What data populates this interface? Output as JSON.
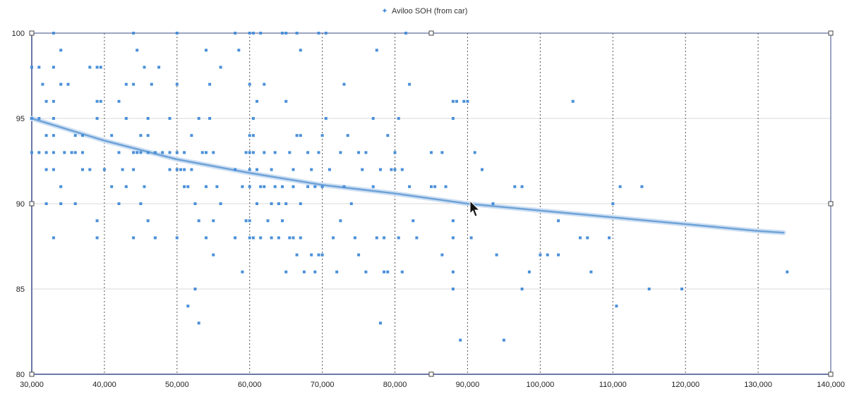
{
  "chart_data": {
    "type": "scatter",
    "title": "",
    "xlabel": "",
    "ylabel": "",
    "xlim": [
      30000,
      140000
    ],
    "ylim": [
      80,
      100
    ],
    "x_ticks": [
      30000,
      40000,
      50000,
      60000,
      70000,
      80000,
      90000,
      100000,
      110000,
      120000,
      130000,
      140000
    ],
    "x_tick_labels": [
      "30,000",
      "40,000",
      "50,000",
      "60,000",
      "70,000",
      "80,000",
      "90,000",
      "100,000",
      "110,000",
      "120,000",
      "130,000",
      "140,000"
    ],
    "y_ticks": [
      80,
      85,
      90,
      95,
      100
    ],
    "y_tick_labels": [
      "80",
      "85",
      "90",
      "95",
      "100"
    ],
    "grid": {
      "vertical": "dotted",
      "horizontal": "solid-light"
    },
    "legend": {
      "placement": "top-center",
      "entries": [
        "Aviloo SOH (from car)"
      ]
    },
    "colors": {
      "points": "#4a90d9",
      "trend": "#6fa3d8",
      "axis": "#3a4a8a"
    },
    "series": [
      {
        "name": "Aviloo SOH (from car)",
        "points": [
          [
            30000,
            98
          ],
          [
            30000,
            93
          ],
          [
            30000,
            95
          ],
          [
            31000,
            98
          ],
          [
            31000,
            95
          ],
          [
            31000,
            93
          ],
          [
            31500,
            97
          ],
          [
            32000,
            96
          ],
          [
            32000,
            94
          ],
          [
            32000,
            92
          ],
          [
            32000,
            90
          ],
          [
            32000,
            93
          ],
          [
            33000,
            100
          ],
          [
            33000,
            98
          ],
          [
            33000,
            96
          ],
          [
            33000,
            95
          ],
          [
            33000,
            94
          ],
          [
            33000,
            93
          ],
          [
            33000,
            92
          ],
          [
            33000,
            88
          ],
          [
            34000,
            99
          ],
          [
            34000,
            97
          ],
          [
            34000,
            91
          ],
          [
            34000,
            90
          ],
          [
            34500,
            93
          ],
          [
            35000,
            97
          ],
          [
            35500,
            93
          ],
          [
            36000,
            94
          ],
          [
            36000,
            93
          ],
          [
            36000,
            90
          ],
          [
            37000,
            94
          ],
          [
            37000,
            93
          ],
          [
            37000,
            92
          ],
          [
            38000,
            98
          ],
          [
            38000,
            92
          ],
          [
            39000,
            98
          ],
          [
            39000,
            96
          ],
          [
            39000,
            95
          ],
          [
            39000,
            89
          ],
          [
            39000,
            88
          ],
          [
            39500,
            98
          ],
          [
            39500,
            96
          ],
          [
            40000,
            92
          ],
          [
            41000,
            94
          ],
          [
            41000,
            91
          ],
          [
            42000,
            96
          ],
          [
            42000,
            93
          ],
          [
            42000,
            90
          ],
          [
            42500,
            92
          ],
          [
            43000,
            97
          ],
          [
            43000,
            95
          ],
          [
            43000,
            91
          ],
          [
            44000,
            100
          ],
          [
            44000,
            97
          ],
          [
            44000,
            93
          ],
          [
            44000,
            92
          ],
          [
            44000,
            88
          ],
          [
            44500,
            99
          ],
          [
            44500,
            93
          ],
          [
            45000,
            94
          ],
          [
            45000,
            93
          ],
          [
            45000,
            90
          ],
          [
            45500,
            98
          ],
          [
            45500,
            91
          ],
          [
            46000,
            95
          ],
          [
            46000,
            94
          ],
          [
            46000,
            93
          ],
          [
            46000,
            89
          ],
          [
            46500,
            97
          ],
          [
            47000,
            93
          ],
          [
            47000,
            88
          ],
          [
            47500,
            98
          ],
          [
            48000,
            93
          ],
          [
            49000,
            95
          ],
          [
            49000,
            93
          ],
          [
            49000,
            92
          ],
          [
            50000,
            100
          ],
          [
            50000,
            97
          ],
          [
            50000,
            93
          ],
          [
            50000,
            92
          ],
          [
            50000,
            88
          ],
          [
            50500,
            92
          ],
          [
            51000,
            93
          ],
          [
            51000,
            92
          ],
          [
            51000,
            91
          ],
          [
            51500,
            91
          ],
          [
            51500,
            84
          ],
          [
            52000,
            94
          ],
          [
            52000,
            92
          ],
          [
            52500,
            90
          ],
          [
            52500,
            85
          ],
          [
            53000,
            95
          ],
          [
            53000,
            89
          ],
          [
            53000,
            83
          ],
          [
            53500,
            93
          ],
          [
            54000,
            99
          ],
          [
            54000,
            93
          ],
          [
            54000,
            91
          ],
          [
            54000,
            88
          ],
          [
            54500,
            97
          ],
          [
            54500,
            95
          ],
          [
            55000,
            93
          ],
          [
            55000,
            89
          ],
          [
            55000,
            87
          ],
          [
            55500,
            91
          ],
          [
            56000,
            98
          ],
          [
            56000,
            90
          ],
          [
            58000,
            100
          ],
          [
            58000,
            92
          ],
          [
            58000,
            88
          ],
          [
            58500,
            99
          ],
          [
            59000,
            91
          ],
          [
            59000,
            86
          ],
          [
            59500,
            93
          ],
          [
            59500,
            89
          ],
          [
            60000,
            100
          ],
          [
            60000,
            97
          ],
          [
            60000,
            94
          ],
          [
            60000,
            93
          ],
          [
            60000,
            92
          ],
          [
            60000,
            91
          ],
          [
            60000,
            89
          ],
          [
            60000,
            88
          ],
          [
            60500,
            100
          ],
          [
            60500,
            95
          ],
          [
            60500,
            94
          ],
          [
            60500,
            93
          ],
          [
            60500,
            88
          ],
          [
            61000,
            96
          ],
          [
            61000,
            92
          ],
          [
            61000,
            90
          ],
          [
            61500,
            100
          ],
          [
            61500,
            91
          ],
          [
            61500,
            88
          ],
          [
            62000,
            97
          ],
          [
            62000,
            93
          ],
          [
            62000,
            91
          ],
          [
            62500,
            89
          ],
          [
            63000,
            92
          ],
          [
            63000,
            90
          ],
          [
            63000,
            88
          ],
          [
            63500,
            93
          ],
          [
            63500,
            91
          ],
          [
            64000,
            90
          ],
          [
            64000,
            88
          ],
          [
            64500,
            100
          ],
          [
            64500,
            91
          ],
          [
            64500,
            89
          ],
          [
            65000,
            100
          ],
          [
            65000,
            96
          ],
          [
            65000,
            90
          ],
          [
            65000,
            86
          ],
          [
            65500,
            93
          ],
          [
            65500,
            88
          ],
          [
            66000,
            92
          ],
          [
            66000,
            91
          ],
          [
            66000,
            88
          ],
          [
            66500,
            100
          ],
          [
            66500,
            94
          ],
          [
            66500,
            87
          ],
          [
            67000,
            99
          ],
          [
            67000,
            94
          ],
          [
            67000,
            90
          ],
          [
            67000,
            88
          ],
          [
            67500,
            86
          ],
          [
            68000,
            93
          ],
          [
            68000,
            91
          ],
          [
            68500,
            92
          ],
          [
            68500,
            87
          ],
          [
            69000,
            91
          ],
          [
            69000,
            86
          ],
          [
            69500,
            100
          ],
          [
            69500,
            93
          ],
          [
            69500,
            87
          ],
          [
            70000,
            94
          ],
          [
            70000,
            91
          ],
          [
            70000,
            87
          ],
          [
            70500,
            100
          ],
          [
            70500,
            95
          ],
          [
            71000,
            92
          ],
          [
            71500,
            88
          ],
          [
            72000,
            86
          ],
          [
            72500,
            93
          ],
          [
            72500,
            89
          ],
          [
            73000,
            97
          ],
          [
            73000,
            91
          ],
          [
            73500,
            94
          ],
          [
            74000,
            90
          ],
          [
            74500,
            88
          ],
          [
            75000,
            93
          ],
          [
            75000,
            87
          ],
          [
            75500,
            92
          ],
          [
            76000,
            93
          ],
          [
            76000,
            86
          ],
          [
            77000,
            95
          ],
          [
            77000,
            91
          ],
          [
            77500,
            99
          ],
          [
            77500,
            88
          ],
          [
            78000,
            92
          ],
          [
            78000,
            83
          ],
          [
            78500,
            88
          ],
          [
            78500,
            86
          ],
          [
            79000,
            94
          ],
          [
            79000,
            86
          ],
          [
            79500,
            92
          ],
          [
            80000,
            93
          ],
          [
            80000,
            92
          ],
          [
            80500,
            95
          ],
          [
            80500,
            88
          ],
          [
            81000,
            92
          ],
          [
            81000,
            86
          ],
          [
            81500,
            100
          ],
          [
            82000,
            97
          ],
          [
            82000,
            91
          ],
          [
            82500,
            89
          ],
          [
            83000,
            88
          ],
          [
            85000,
            93
          ],
          [
            85000,
            91
          ],
          [
            85500,
            91
          ],
          [
            86500,
            93
          ],
          [
            86500,
            87
          ],
          [
            87000,
            91
          ],
          [
            88000,
            96
          ],
          [
            88000,
            95
          ],
          [
            88000,
            89
          ],
          [
            88000,
            88
          ],
          [
            88000,
            86
          ],
          [
            88000,
            85
          ],
          [
            88500,
            96
          ],
          [
            89000,
            82
          ],
          [
            89500,
            96
          ],
          [
            90000,
            96
          ],
          [
            90500,
            88
          ],
          [
            91000,
            93
          ],
          [
            92000,
            92
          ],
          [
            93500,
            90
          ],
          [
            94000,
            87
          ],
          [
            95000,
            82
          ],
          [
            96500,
            91
          ],
          [
            97500,
            85
          ],
          [
            97500,
            91
          ],
          [
            98500,
            86
          ],
          [
            100000,
            87
          ],
          [
            101000,
            87
          ],
          [
            102500,
            89
          ],
          [
            102500,
            87
          ],
          [
            104500,
            96
          ],
          [
            105500,
            88
          ],
          [
            106500,
            88
          ],
          [
            107000,
            86
          ],
          [
            109500,
            88
          ],
          [
            110000,
            90
          ],
          [
            110500,
            84
          ],
          [
            111000,
            91
          ],
          [
            114000,
            91
          ],
          [
            115000,
            85
          ],
          [
            119500,
            85
          ],
          [
            134000,
            86
          ]
        ]
      }
    ],
    "trendline": {
      "type": "curve",
      "points": [
        [
          30000,
          95
        ],
        [
          40000,
          93.7
        ],
        [
          50000,
          92.6
        ],
        [
          60000,
          91.8
        ],
        [
          70000,
          91.1
        ],
        [
          80000,
          90.6
        ],
        [
          90000,
          90.0
        ],
        [
          100000,
          89.6
        ],
        [
          110000,
          89.2
        ],
        [
          120000,
          88.8
        ],
        [
          130000,
          88.4
        ],
        [
          133500,
          88.3
        ]
      ]
    }
  }
}
